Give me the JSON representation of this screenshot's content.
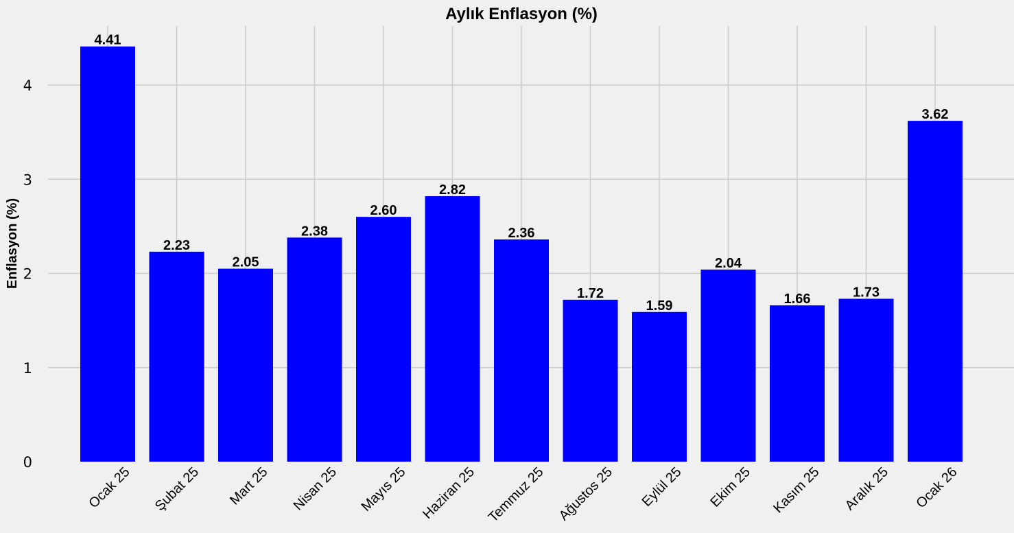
{
  "chart_data": {
    "type": "bar",
    "title": "Aylık Enflasyon (%)",
    "xlabel": "",
    "ylabel": "Enflasyon (%)",
    "categories": [
      "Ocak 25",
      "Şubat 25",
      "Mart 25",
      "Nisan 25",
      "Mayıs 25",
      "Haziran 25",
      "Temmuz 25",
      "Ağustos 25",
      "Eylül 25",
      "Ekim 25",
      "Kasım 25",
      "Aralık 25",
      "Ocak 26"
    ],
    "values": [
      4.41,
      2.23,
      2.05,
      2.38,
      2.6,
      2.82,
      2.36,
      1.72,
      1.59,
      2.04,
      1.66,
      1.73,
      3.62
    ],
    "value_labels": [
      "4.41",
      "2.23",
      "2.05",
      "2.38",
      "2.60",
      "2.82",
      "2.36",
      "1.72",
      "1.59",
      "2.04",
      "1.66",
      "1.73",
      "3.62"
    ],
    "yticks": [
      0,
      1,
      2,
      3,
      4
    ],
    "ylim": [
      0,
      4.63
    ],
    "grid": true,
    "bar_color": "#0000ff",
    "background": "#f0f0f0"
  }
}
